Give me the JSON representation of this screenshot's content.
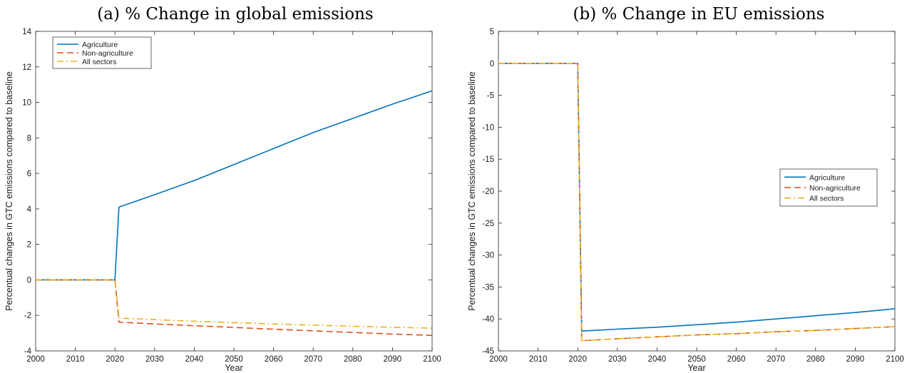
{
  "chart_data": [
    {
      "type": "line",
      "title": "(a) % Change in global emissions",
      "xlabel": "Year",
      "ylabel": "Percentual changes in GTC emissions compared to baseline",
      "xlim": [
        2000,
        2100
      ],
      "ylim": [
        -4,
        14
      ],
      "xticks": [
        2000,
        2010,
        2020,
        2030,
        2040,
        2050,
        2060,
        2070,
        2080,
        2090,
        2100
      ],
      "yticks": [
        -4,
        -2,
        0,
        2,
        4,
        6,
        8,
        10,
        12,
        14
      ],
      "grid": false,
      "legend_position": "top-left",
      "series": [
        {
          "name": "Agriculture",
          "color": "#0072BD",
          "dash": "solid",
          "x": [
            2000,
            2020,
            2021,
            2030,
            2040,
            2050,
            2060,
            2070,
            2080,
            2090,
            2100
          ],
          "y": [
            0,
            0,
            4.1,
            4.8,
            5.6,
            6.5,
            7.4,
            8.3,
            9.1,
            9.9,
            10.65
          ]
        },
        {
          "name": "Non-agriculture",
          "color": "#D95319",
          "dash": "dashed",
          "x": [
            2000,
            2020,
            2021,
            2030,
            2040,
            2050,
            2060,
            2070,
            2080,
            2090,
            2100
          ],
          "y": [
            0,
            0,
            -2.38,
            -2.48,
            -2.58,
            -2.68,
            -2.78,
            -2.87,
            -2.96,
            -3.05,
            -3.13
          ]
        },
        {
          "name": "All sectors",
          "color": "#EDB120",
          "dash": "dashdot",
          "x": [
            2000,
            2020,
            2021,
            2030,
            2040,
            2050,
            2060,
            2070,
            2080,
            2090,
            2100
          ],
          "y": [
            0,
            0,
            -2.15,
            -2.24,
            -2.33,
            -2.41,
            -2.48,
            -2.55,
            -2.61,
            -2.67,
            -2.72
          ]
        }
      ]
    },
    {
      "type": "line",
      "title": "(b) % Change in EU emissions",
      "xlabel": "Year",
      "ylabel": "Percentual changes in GTC emissions compared to baseline",
      "xlim": [
        2000,
        2100
      ],
      "ylim": [
        -45,
        5
      ],
      "xticks": [
        2000,
        2010,
        2020,
        2030,
        2040,
        2050,
        2060,
        2070,
        2080,
        2090,
        2100
      ],
      "yticks": [
        -45,
        -40,
        -35,
        -30,
        -25,
        -20,
        -15,
        -10,
        -5,
        0,
        5
      ],
      "grid": false,
      "legend_position": "center-right",
      "series": [
        {
          "name": "Agriculture",
          "color": "#0072BD",
          "dash": "solid",
          "x": [
            2000,
            2020,
            2021,
            2030,
            2040,
            2050,
            2060,
            2070,
            2080,
            2090,
            2100
          ],
          "y": [
            0,
            0,
            -41.9,
            -41.6,
            -41.3,
            -40.9,
            -40.5,
            -40.0,
            -39.5,
            -39.0,
            -38.4
          ]
        },
        {
          "name": "Non-agriculture",
          "color": "#D95319",
          "dash": "dashed",
          "x": [
            2000,
            2020,
            2021,
            2030,
            2040,
            2050,
            2060,
            2070,
            2080,
            2090,
            2100
          ],
          "y": [
            0,
            0,
            -43.4,
            -43.1,
            -42.8,
            -42.5,
            -42.3,
            -42.0,
            -41.8,
            -41.5,
            -41.2
          ]
        },
        {
          "name": "All sectors",
          "color": "#EDB120",
          "dash": "dashdot",
          "x": [
            2000,
            2020,
            2021,
            2030,
            2040,
            2050,
            2060,
            2070,
            2080,
            2090,
            2100
          ],
          "y": [
            0,
            0,
            -43.4,
            -43.1,
            -42.8,
            -42.5,
            -42.3,
            -42.0,
            -41.8,
            -41.5,
            -41.2
          ]
        }
      ]
    }
  ]
}
